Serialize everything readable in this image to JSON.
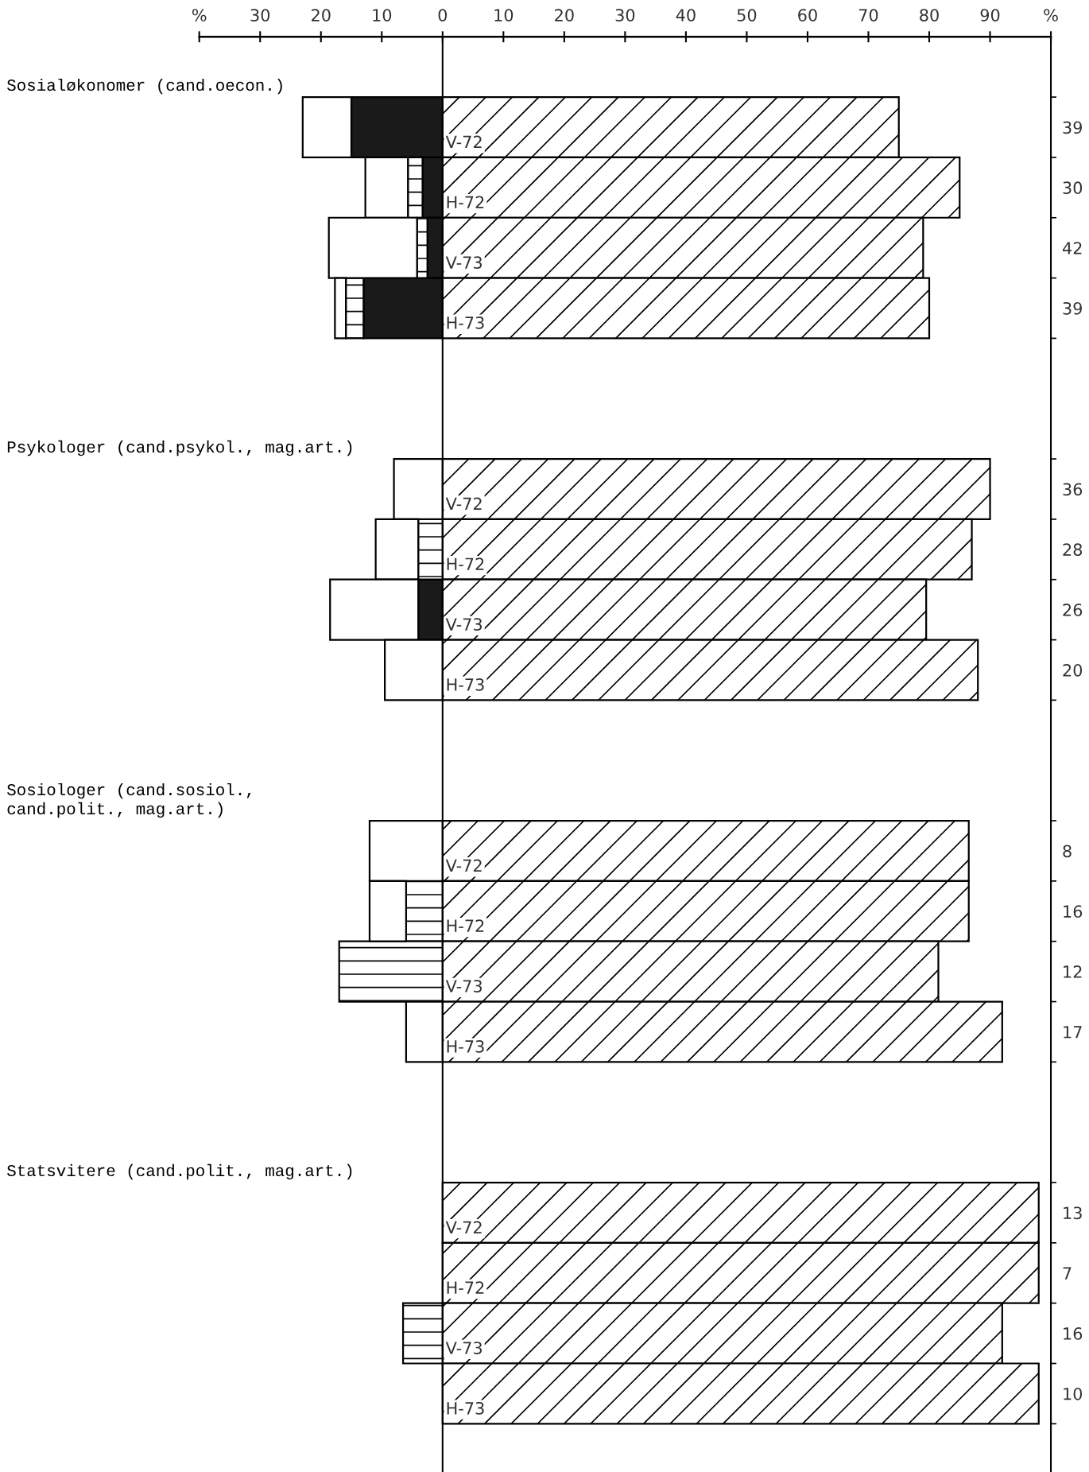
{
  "chart_data": {
    "type": "bar",
    "orientation": "horizontal",
    "stacked": true,
    "categories": [
      "V-72",
      "H-72",
      "V-73",
      "H-73",
      null,
      null,
      "V-72",
      "H-72",
      "V-73",
      "H-73",
      null,
      null,
      "V-72",
      "H-72",
      "V-73",
      "H-73",
      null,
      null,
      "V-72",
      "H-72",
      "V-73",
      "H-73"
    ],
    "y2_categories": [
      "39",
      "30",
      "42",
      "39",
      null,
      null,
      "36",
      "28",
      "26",
      "20",
      null,
      null,
      "8",
      "16",
      "12",
      "17",
      null,
      null,
      "13",
      "7",
      "16",
      "10"
    ],
    "series": [
      {
        "color": "#000000",
        "values": [
          75,
          85,
          79,
          80,
          null,
          null,
          90,
          87,
          79.5,
          88,
          null,
          null,
          86.5,
          86.5,
          81.5,
          92,
          null,
          null,
          98,
          98,
          92,
          98
        ]
      },
      {
        "color": "#1a1a1a",
        "values": [
          -15,
          -3.3,
          -2.5,
          -13,
          null,
          null,
          null,
          null,
          -4,
          null,
          null,
          null,
          null,
          null,
          null,
          null,
          null,
          null,
          null,
          null,
          null,
          null
        ]
      },
      {
        "color": "#000000",
        "values": [
          null,
          -2.4,
          -1.7,
          -2.9,
          null,
          null,
          null,
          -4,
          null,
          null,
          null,
          null,
          null,
          -6,
          -17,
          null,
          null,
          null,
          null,
          null,
          -6.5,
          null
        ]
      },
      {
        "color": "#ffffff",
        "values": [
          -8,
          -7,
          -14.5,
          -1.8,
          null,
          null,
          -8,
          -7,
          -14.5,
          -9.5,
          null,
          null,
          -12,
          -6,
          null,
          -6,
          null,
          null,
          null,
          null,
          null,
          null
        ]
      }
    ],
    "xlim": [
      -40,
      100
    ],
    "xticks": [
      {
        "value": -40,
        "label": "%"
      },
      {
        "value": -30,
        "label": "30"
      },
      {
        "value": -20,
        "label": "20"
      },
      {
        "value": -10,
        "label": "10"
      },
      0,
      10,
      20,
      30,
      40,
      50,
      60,
      70,
      80,
      90,
      {
        "value": 100,
        "label": "%"
      }
    ],
    "annotations": [
      "Sosialøkonomer (cand.oecon.)",
      "Psykologer (cand.psykol., mag.art.)",
      "Sosiologer (cand.sosiol.,\ncand.polit., mag.art.)",
      "Statsvitere (cand.polit., mag.art.)"
    ],
    "grid": false,
    "legend": false
  }
}
